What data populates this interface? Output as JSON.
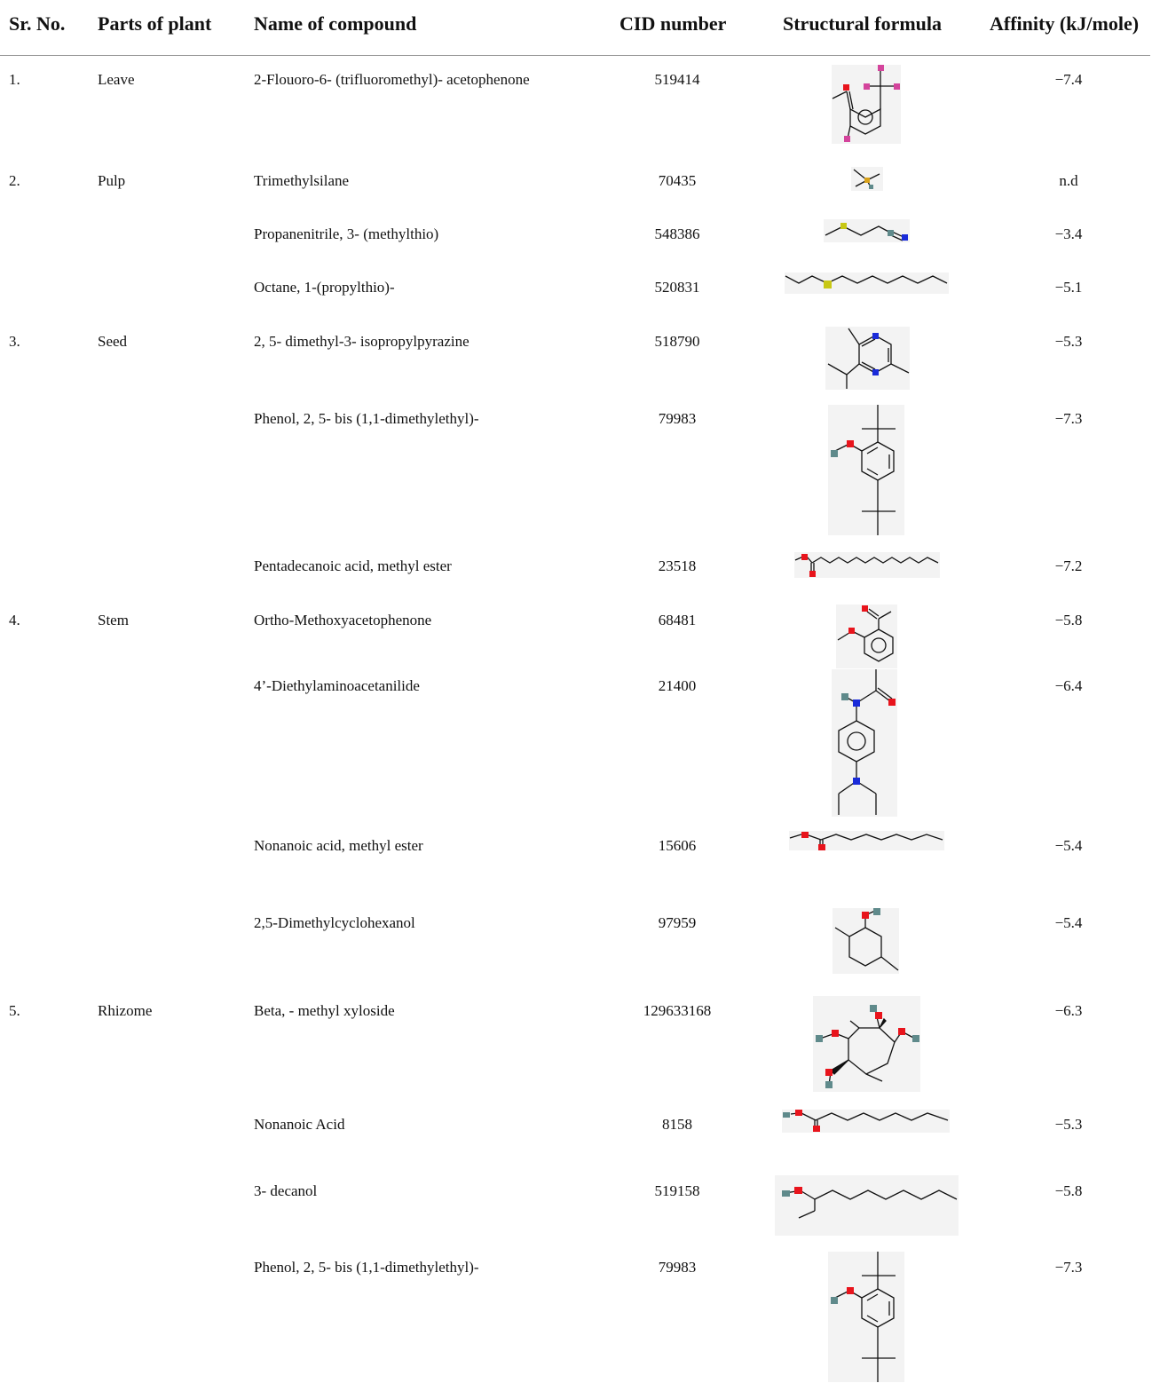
{
  "headers": {
    "sr": "Sr. No.",
    "part": "Parts of plant",
    "name": "Name of compound",
    "cid": "CID number",
    "structure": "Structural formula",
    "affinity": "Affinity (kJ/mole)"
  },
  "rows": [
    {
      "sr": "1.",
      "part": "Leave",
      "name": "2-Flouoro-6- (trifluoromethyl)- acetophenone",
      "cid": "519414",
      "affinity": "−7.4",
      "structure_icon": "2-fluoro-6-trifluoromethyl-acetophenone-structure"
    },
    {
      "sr": "2.",
      "part": "Pulp",
      "name": "Trimethylsilane",
      "cid": "70435",
      "affinity": "n.d",
      "structure_icon": "trimethylsilane-structure"
    },
    {
      "sr": "",
      "part": "",
      "name": "Propanenitrile, 3- (methylthio)",
      "cid": "548386",
      "affinity": "−3.4",
      "structure_icon": "propanenitrile-methylthio-structure"
    },
    {
      "sr": "",
      "part": "",
      "name": "Octane, 1-(propylthio)-",
      "cid": "520831",
      "affinity": "−5.1",
      "structure_icon": "octane-propylthio-structure"
    },
    {
      "sr": "3.",
      "part": "Seed",
      "name": "2, 5- dimethyl-3- isopropylpyrazine",
      "cid": "518790",
      "affinity": "−5.3",
      "structure_icon": "dimethyl-isopropylpyrazine-structure"
    },
    {
      "sr": "",
      "part": "",
      "name": "Phenol, 2, 5- bis (1,1-dimethylethyl)-",
      "cid": "79983",
      "affinity": "−7.3",
      "structure_icon": "di-tert-butylphenol-structure"
    },
    {
      "sr": "",
      "part": "",
      "name": "Pentadecanoic acid, methyl ester",
      "cid": "23518",
      "affinity": "−7.2",
      "structure_icon": "methyl-pentadecanoate-structure"
    },
    {
      "sr": "4.",
      "part": "Stem",
      "name": "Ortho-Methoxyacetophenone",
      "cid": "68481",
      "affinity": "−5.8",
      "structure_icon": "ortho-methoxyacetophenone-structure"
    },
    {
      "sr": "",
      "part": "",
      "name": "4’-Diethylaminoacetanilide",
      "cid": "21400",
      "affinity": "−6.4",
      "structure_icon": "diethylaminoacetanilide-structure"
    },
    {
      "sr": "",
      "part": "",
      "name": "Nonanoic acid, methyl ester",
      "cid": "15606",
      "affinity": "−5.4",
      "structure_icon": "methyl-nonanoate-structure"
    },
    {
      "sr": "",
      "part": "",
      "name": "2,5-Dimethylcyclohexanol",
      "cid": "97959",
      "affinity": "−5.4",
      "structure_icon": "dimethylcyclohexanol-structure"
    },
    {
      "sr": "5.",
      "part": "Rhizome",
      "name": "Beta, - methyl xyloside",
      "cid": "129633168",
      "affinity": "−6.3",
      "structure_icon": "beta-methyl-xyloside-structure"
    },
    {
      "sr": "",
      "part": "",
      "name": "Nonanoic Acid",
      "cid": "8158",
      "affinity": "−5.3",
      "structure_icon": "nonanoic-acid-structure"
    },
    {
      "sr": "",
      "part": "",
      "name": "3- decanol",
      "cid": "519158",
      "affinity": "−5.8",
      "structure_icon": "3-decanol-structure"
    },
    {
      "sr": "",
      "part": "",
      "name": "Phenol, 2, 5- bis (1,1-dimethylethyl)-",
      "cid": "79983",
      "affinity": "−7.3",
      "structure_icon": "di-tert-butylphenol-structure"
    }
  ],
  "atom_colors": {
    "oxygen": "#e8141c",
    "fluorine": "#d4449c",
    "nitrogen": "#1a2bd9",
    "sulfur": "#c8c814",
    "silicon": "#d9a21a",
    "hydrogen": "#5f8a8b"
  }
}
